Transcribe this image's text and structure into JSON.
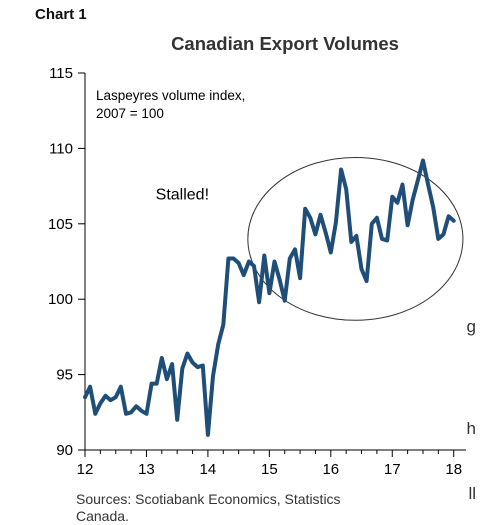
{
  "chart_label": "Chart 1",
  "left_column_fragments": [
    "g",
    "h",
    "ll"
  ],
  "chart_data": {
    "type": "line",
    "title": "Canadian Export Volumes",
    "subtitle_lines": [
      "Laspeyres volume index,",
      "2007 = 100"
    ],
    "xlabel": "",
    "ylabel": "",
    "xlim": [
      12,
      18.2
    ],
    "ylim": [
      90,
      115
    ],
    "x_ticks": [
      12,
      13,
      14,
      15,
      16,
      17,
      18
    ],
    "x_tick_labels": [
      "12",
      "13",
      "14",
      "15",
      "16",
      "17",
      "18"
    ],
    "y_ticks": [
      90,
      95,
      100,
      105,
      110,
      115
    ],
    "y_tick_labels": [
      "90",
      "95",
      "100",
      "105",
      "110",
      "115"
    ],
    "line_color": "#1f4e79",
    "annotation": {
      "text": "Stalled!",
      "shape": "ellipse",
      "center": [
        16.4,
        104
      ],
      "radii": [
        1.75,
        5.4
      ]
    },
    "series": [
      {
        "x": [
          12.0,
          12.083,
          12.167,
          12.25,
          12.333,
          12.417,
          12.5,
          12.583,
          12.667,
          12.75,
          12.833,
          12.917,
          13.0,
          13.083,
          13.167,
          13.25,
          13.333,
          13.417,
          13.5,
          13.583,
          13.667,
          13.75,
          13.833,
          13.917,
          14.0,
          14.083,
          14.167,
          14.25,
          14.333,
          14.417,
          14.5,
          14.583,
          14.667,
          14.75,
          14.833,
          14.917,
          15.0,
          15.083,
          15.167,
          15.25,
          15.333,
          15.417,
          15.5,
          15.583,
          15.667,
          15.75,
          15.833,
          15.917,
          16.0,
          16.083,
          16.167,
          16.25,
          16.333,
          16.417,
          16.5,
          16.583,
          16.667,
          16.75,
          16.833,
          16.917,
          17.0,
          17.083,
          17.167,
          17.25,
          17.333,
          17.417,
          17.5,
          17.583,
          17.667,
          17.75,
          17.833,
          17.917,
          18.0
        ],
        "values": [
          93.5,
          94.2,
          92.4,
          93.1,
          93.6,
          93.3,
          93.5,
          94.2,
          92.4,
          92.5,
          92.9,
          92.6,
          92.4,
          94.4,
          94.4,
          96.1,
          94.7,
          95.7,
          92.0,
          95.4,
          96.4,
          95.8,
          95.5,
          95.6,
          91.0,
          94.9,
          97.0,
          98.3,
          102.7,
          102.7,
          102.4,
          101.6,
          102.5,
          102.2,
          99.8,
          102.9,
          100.4,
          102.5,
          101.3,
          99.9,
          102.7,
          103.3,
          101.4,
          106.0,
          105.4,
          104.3,
          105.6,
          104.4,
          103.1,
          105.1,
          108.6,
          107.3,
          103.8,
          104.2,
          102.0,
          101.2,
          105.0,
          105.4,
          104.0,
          103.9,
          106.8,
          106.4,
          107.6,
          104.9,
          106.6,
          107.9,
          109.2,
          107.6,
          106.1,
          104.0,
          104.3,
          105.5,
          105.2
        ]
      }
    ],
    "source_lines": [
      "Sources: Scotiabank Economics, Statistics",
      "Canada."
    ]
  }
}
